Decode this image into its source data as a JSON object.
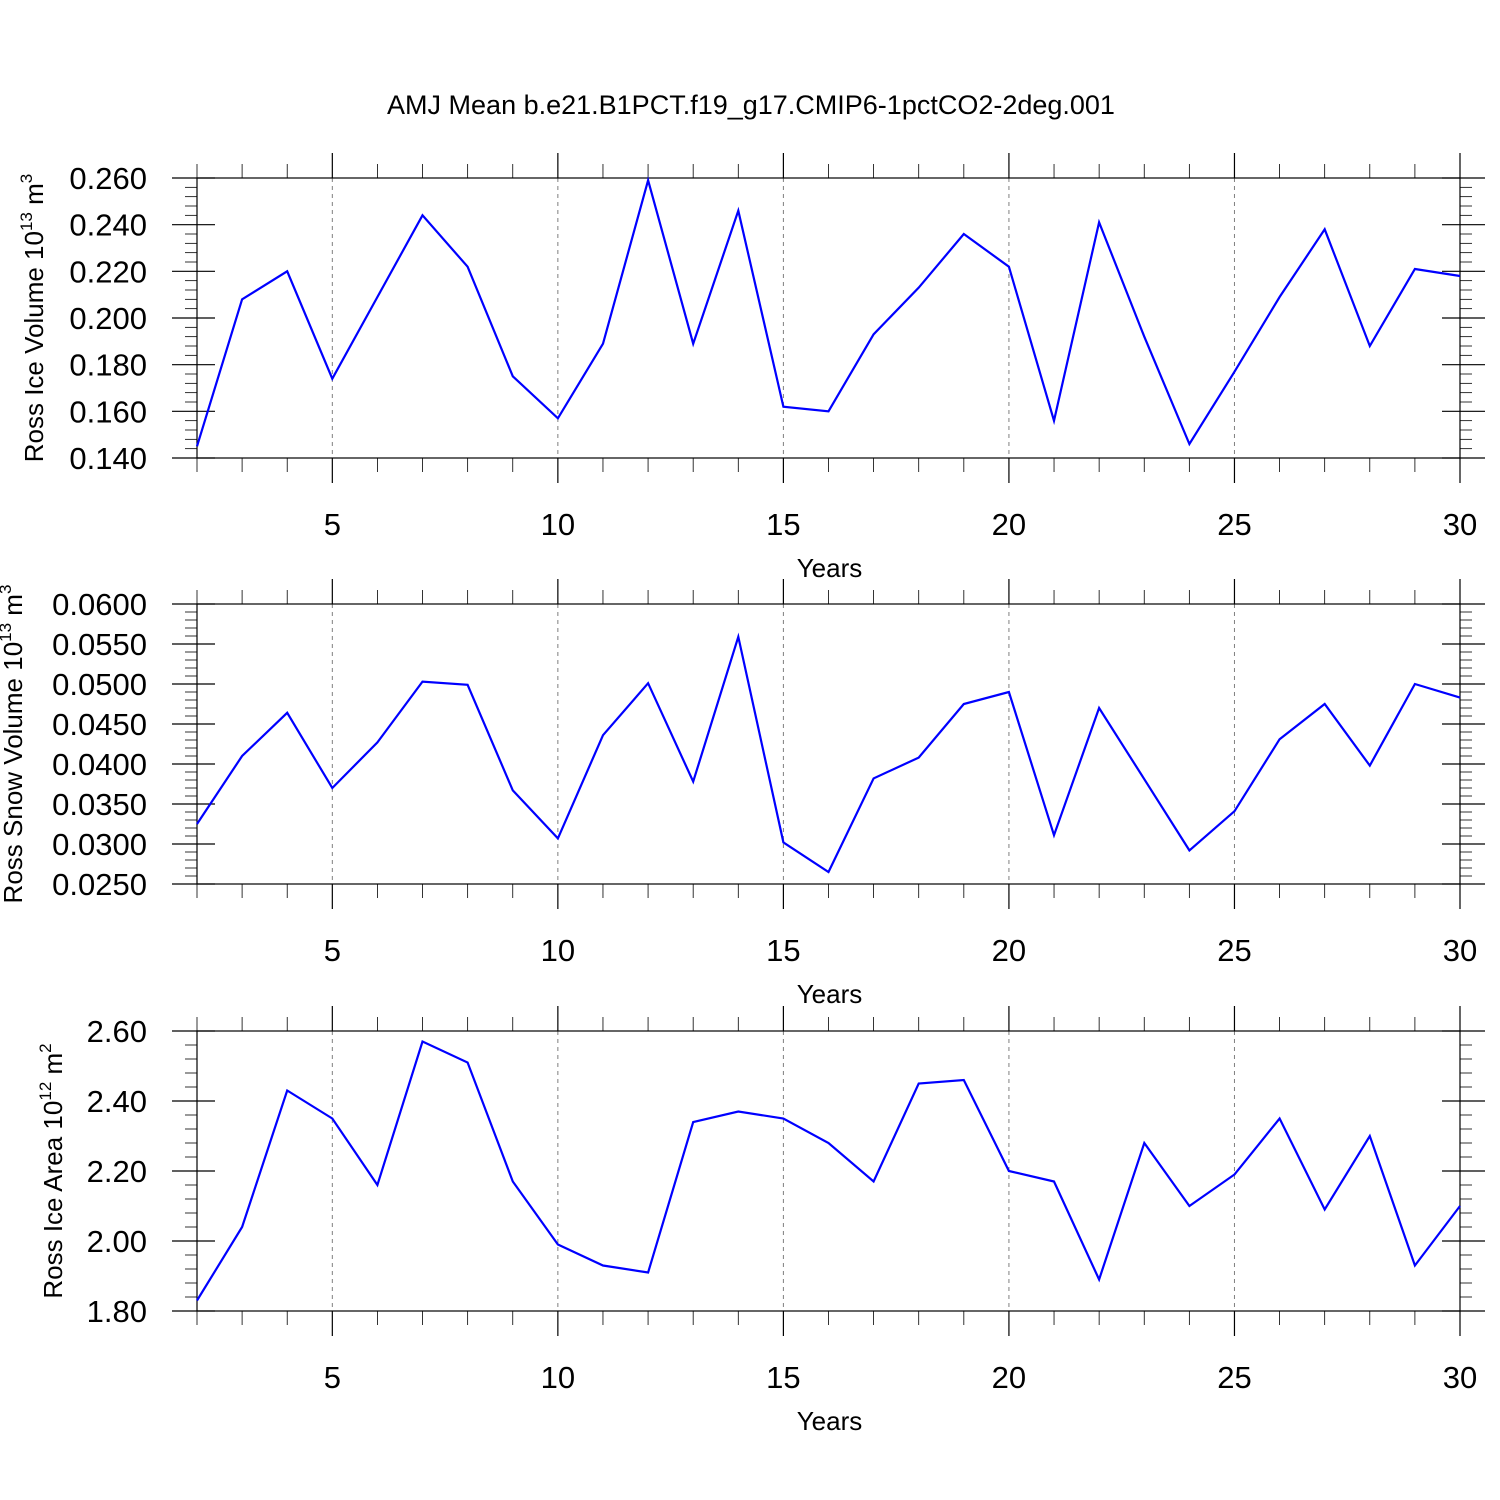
{
  "title": "AMJ Mean b.e21.B1PCT.f19_g17.CMIP6-1pctCO2-2deg.001",
  "colors": {
    "series": "#0000ff",
    "grid": "#7f7f7f",
    "axes": "#000000"
  },
  "chart_data": [
    {
      "type": "line",
      "ylabel": {
        "base": "Ross Ice Volume 10",
        "exp1": "13",
        "mid": " m",
        "exp2": "3"
      },
      "xlabel": "Years",
      "xlim": [
        2,
        30
      ],
      "ylim": [
        0.14,
        0.26
      ],
      "yticks": [
        0.14,
        0.16,
        0.18,
        0.2,
        0.22,
        0.24,
        0.26
      ],
      "ytick_labels": [
        "0.140",
        "0.160",
        "0.180",
        "0.200",
        "0.220",
        "0.240",
        "0.260"
      ],
      "xticks": [
        5,
        10,
        15,
        20,
        25,
        30
      ],
      "xtick_labels": [
        "5",
        "10",
        "15",
        "20",
        "25",
        "30"
      ],
      "grid": "vertical dashed at major x ticks",
      "x": [
        2,
        3,
        4,
        5,
        6,
        7,
        8,
        9,
        10,
        11,
        12,
        13,
        14,
        15,
        16,
        17,
        18,
        19,
        20,
        21,
        22,
        23,
        24,
        25,
        26,
        27,
        28,
        29,
        30
      ],
      "series": [
        {
          "values": [
            0.145,
            0.208,
            0.22,
            0.174,
            0.209,
            0.244,
            0.222,
            0.175,
            0.157,
            0.189,
            0.259,
            0.189,
            0.246,
            0.162,
            0.16,
            0.193,
            0.213,
            0.236,
            0.222,
            0.156,
            0.241,
            0.192,
            0.146,
            0.177,
            0.209,
            0.238,
            0.188,
            0.221,
            0.218
          ]
        }
      ]
    },
    {
      "type": "line",
      "ylabel": {
        "base": "Ross Snow Volume 10",
        "exp1": "13",
        "mid": " m",
        "exp2": "3"
      },
      "xlabel": "Years",
      "xlim": [
        2,
        30
      ],
      "ylim": [
        0.025,
        0.06
      ],
      "yticks": [
        0.025,
        0.03,
        0.035,
        0.04,
        0.045,
        0.05,
        0.055,
        0.06
      ],
      "ytick_labels": [
        "0.0250",
        "0.0300",
        "0.0350",
        "0.0400",
        "0.0450",
        "0.0500",
        "0.0550",
        "0.0600"
      ],
      "xticks": [
        5,
        10,
        15,
        20,
        25,
        30
      ],
      "xtick_labels": [
        "5",
        "10",
        "15",
        "20",
        "25",
        "30"
      ],
      "grid": "vertical dashed at major x ticks",
      "x": [
        2,
        3,
        4,
        5,
        6,
        7,
        8,
        9,
        10,
        11,
        12,
        13,
        14,
        15,
        16,
        17,
        18,
        19,
        20,
        21,
        22,
        23,
        24,
        25,
        26,
        27,
        28,
        29,
        30
      ],
      "series": [
        {
          "values": [
            0.0325,
            0.041,
            0.0464,
            0.037,
            0.0427,
            0.0503,
            0.0499,
            0.0367,
            0.0307,
            0.0436,
            0.0501,
            0.0378,
            0.0559,
            0.0302,
            0.0265,
            0.0382,
            0.0408,
            0.0475,
            0.049,
            0.0311,
            0.047,
            0.0381,
            0.0292,
            0.0341,
            0.0431,
            0.0475,
            0.0398,
            0.05,
            0.0483
          ]
        }
      ]
    },
    {
      "type": "line",
      "ylabel": {
        "base": "Ross Ice Area 10",
        "exp1": "12",
        "mid": " m",
        "exp2": "2"
      },
      "xlabel": "Years",
      "xlim": [
        2,
        30
      ],
      "ylim": [
        1.8,
        2.6
      ],
      "yticks": [
        1.8,
        2.0,
        2.2,
        2.4,
        2.6
      ],
      "ytick_labels": [
        "1.80",
        "2.00",
        "2.20",
        "2.40",
        "2.60"
      ],
      "xticks": [
        5,
        10,
        15,
        20,
        25,
        30
      ],
      "xtick_labels": [
        "5",
        "10",
        "15",
        "20",
        "25",
        "30"
      ],
      "grid": "vertical dashed at major x ticks",
      "x": [
        2,
        3,
        4,
        5,
        6,
        7,
        8,
        9,
        10,
        11,
        12,
        13,
        14,
        15,
        16,
        17,
        18,
        19,
        20,
        21,
        22,
        23,
        24,
        25,
        26,
        27,
        28,
        29,
        30
      ],
      "series": [
        {
          "values": [
            1.83,
            2.04,
            2.43,
            2.35,
            2.16,
            2.57,
            2.51,
            2.17,
            1.99,
            1.93,
            1.91,
            2.34,
            2.37,
            2.35,
            2.28,
            2.17,
            2.45,
            2.46,
            2.2,
            2.17,
            1.89,
            2.28,
            2.1,
            2.19,
            2.35,
            2.09,
            2.3,
            1.93,
            2.1
          ]
        }
      ]
    }
  ]
}
